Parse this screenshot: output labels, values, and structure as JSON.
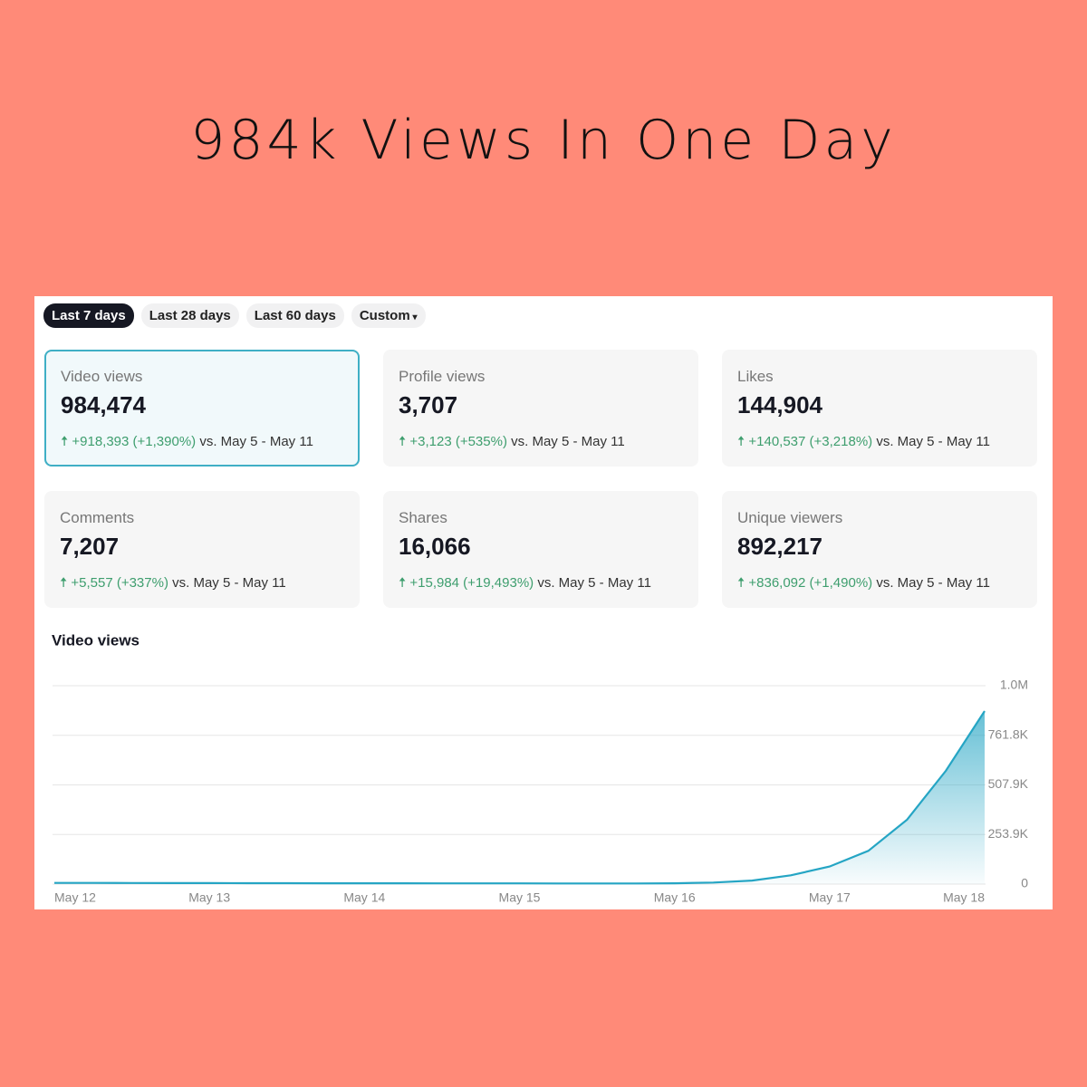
{
  "header": {
    "title": "984k Views In One Day"
  },
  "tabs": [
    "Last 7 days",
    "Last 28 days",
    "Last 60 days",
    "Custom"
  ],
  "cards": [
    {
      "label": "Video views",
      "value": "984,474",
      "change": "+918,393 (+1,390%)",
      "compare": "vs.  May 5 - May 11"
    },
    {
      "label": "Profile views",
      "value": "3,707",
      "change": "+3,123 (+535%)",
      "compare": "vs.  May 5 - May 11"
    },
    {
      "label": "Likes",
      "value": "144,904",
      "change": "+140,537 (+3,218%)",
      "compare": "vs.  May 5 - May 11"
    },
    {
      "label": "Comments",
      "value": "7,207",
      "change": "+5,557 (+337%)",
      "compare": "vs.  May 5 - May 11"
    },
    {
      "label": "Shares",
      "value": "16,066",
      "change": "+15,984 (+19,493%)",
      "compare": "vs.  May 5 - May 11"
    },
    {
      "label": "Unique viewers",
      "value": "892,217",
      "change": "+836,092 (+1,490%)",
      "compare": "vs.  May 5 - May 11"
    }
  ],
  "chart_data": {
    "type": "line",
    "title": "Video views",
    "categories": [
      "May 12",
      null,
      null,
      null,
      "May 13",
      null,
      null,
      null,
      "May 14",
      null,
      null,
      null,
      "May 15",
      null,
      null,
      null,
      "May 16",
      null,
      null,
      null,
      "May 17",
      null,
      null,
      null,
      "May 18"
    ],
    "values": [
      6000,
      5800,
      5500,
      5200,
      5000,
      4800,
      4600,
      4400,
      4200,
      4000,
      3800,
      3600,
      3500,
      3400,
      3300,
      3300,
      4000,
      8000,
      18000,
      45000,
      90000,
      170000,
      330000,
      580000,
      886000
    ],
    "color": "#25a5c4",
    "ylim": [
      0,
      1015700
    ],
    "yticks": [
      0,
      {
        "value": 253900,
        "label": "253.9K"
      },
      {
        "value": 507900,
        "label": "507.9K"
      },
      {
        "value": 761800,
        "label": "761.8K"
      },
      {
        "value": 1015700,
        "label": "1.0M"
      }
    ],
    "grid": true
  }
}
